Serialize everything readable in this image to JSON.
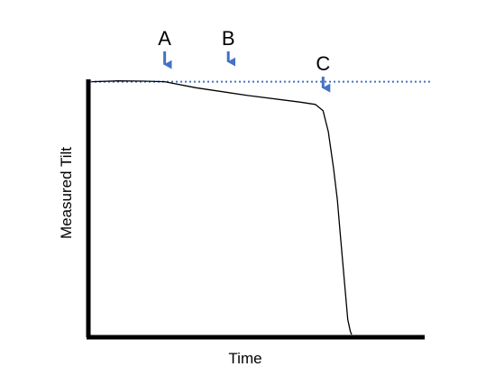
{
  "chart_data": {
    "type": "line",
    "title": "",
    "xlabel": "Time",
    "ylabel": "Measured Tilt",
    "xlim": [
      0,
      100
    ],
    "ylim": [
      0,
      100
    ],
    "grid": false,
    "legend": "none",
    "series": [
      {
        "x": [
          0,
          10,
          20,
          28,
          40,
          60,
          80,
          86,
          89,
          91,
          93,
          94.5,
          95.5,
          96.5,
          97.5,
          98.5,
          99.5,
          100
        ],
        "y": [
          84.7,
          85.0,
          84.9,
          84.7,
          82.7,
          80.1,
          77.9,
          77.1,
          75.0,
          68.0,
          56.0,
          45.0,
          35.0,
          25.0,
          15.0,
          5.0,
          1.0,
          0
        ],
        "color": "#000000"
      }
    ],
    "reference_line": {
      "y": 84.7,
      "style": "dotted",
      "color": "#4472C4"
    },
    "markers": [
      {
        "label": "A",
        "x": 28,
        "color": "#4472C4"
      },
      {
        "label": "B",
        "x": 52.5,
        "color": "#4472C4"
      },
      {
        "label": "C",
        "x": 89,
        "color": "#4472C4"
      }
    ]
  }
}
